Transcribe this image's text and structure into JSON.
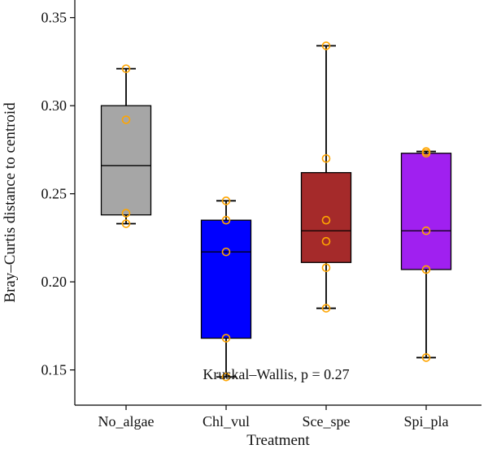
{
  "chart_data": {
    "type": "box",
    "xlabel": "Treatment",
    "ylabel": "Bray–Curtis distance to centroid",
    "ylim": [
      0.13,
      0.36
    ],
    "yticks": [
      0.15,
      0.2,
      0.25,
      0.3,
      0.35
    ],
    "ytick_labels": [
      "0.15",
      "0.20",
      "0.25",
      "0.30",
      "0.35"
    ],
    "categories": [
      "No_algae",
      "Chl_vul",
      "Sce_spe",
      "Spi_pla"
    ],
    "boxes": [
      {
        "category": "No_algae",
        "color": "#a6a6a6",
        "q1": 0.238,
        "median": 0.266,
        "q3": 0.3,
        "whisker_low": 0.233,
        "whisker_high": 0.321,
        "points": [
          0.233,
          0.239,
          0.292,
          0.321
        ]
      },
      {
        "category": "Chl_vul",
        "color": "#0000ff",
        "q1": 0.168,
        "median": 0.217,
        "q3": 0.235,
        "whisker_low": 0.146,
        "whisker_high": 0.246,
        "points": [
          0.146,
          0.168,
          0.217,
          0.235,
          0.246
        ]
      },
      {
        "category": "Sce_spe",
        "color": "#a52a2a",
        "q1": 0.211,
        "median": 0.229,
        "q3": 0.262,
        "whisker_low": 0.185,
        "whisker_high": 0.334,
        "points": [
          0.185,
          0.208,
          0.223,
          0.235,
          0.27,
          0.334
        ]
      },
      {
        "category": "Spi_pla",
        "color": "#a020f0",
        "q1": 0.207,
        "median": 0.229,
        "q3": 0.273,
        "whisker_low": 0.157,
        "whisker_high": 0.274,
        "points": [
          0.157,
          0.207,
          0.229,
          0.273,
          0.274
        ]
      }
    ],
    "point_color": "#ffa500",
    "annotation": "Kruskal–Wallis, p = 0.27",
    "grid": false,
    "legend": "none"
  }
}
